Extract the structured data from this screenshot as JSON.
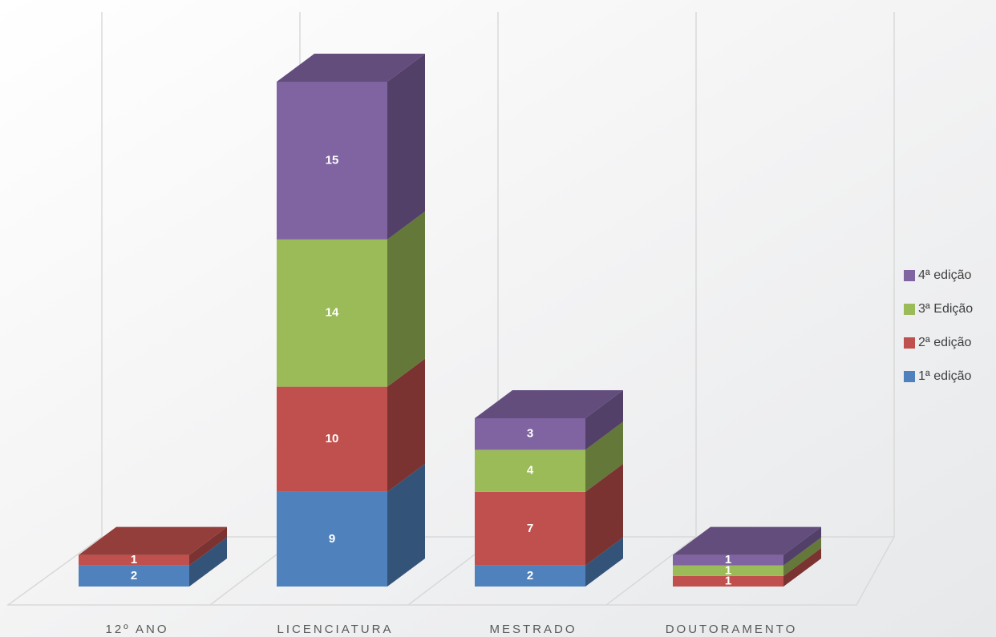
{
  "chart_data": {
    "type": "bar3d_stacked",
    "categories": [
      "12º ANO",
      "LICENCIATURA",
      "MESTRADO",
      "DOUTORAMENTO"
    ],
    "series": [
      {
        "name": "1ª edição",
        "color": "#4f81bd",
        "values": [
          2,
          9,
          2,
          null
        ]
      },
      {
        "name": "2ª edição",
        "color": "#c0504d",
        "values": [
          1,
          10,
          7,
          1
        ]
      },
      {
        "name": "3ª Edição",
        "color": "#9bbb59",
        "values": [
          null,
          14,
          4,
          1
        ]
      },
      {
        "name": "4ª edição",
        "color": "#8064a2",
        "values": [
          null,
          15,
          3,
          1
        ]
      }
    ],
    "legend": "right"
  }
}
